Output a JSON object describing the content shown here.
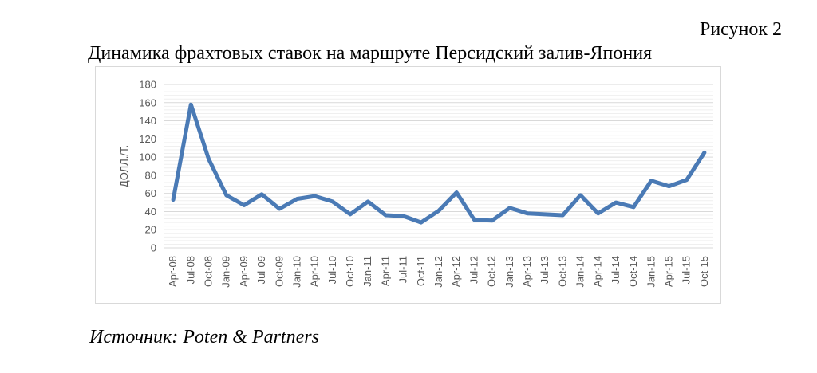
{
  "figure": {
    "label": "Рисунок 2",
    "title": "Динамика фрахтовых ставок на маршруте Персидский залив-Япония",
    "source": "Источник: Poten & Partners"
  },
  "chart_data": {
    "type": "line",
    "xlabel": "",
    "ylabel": "ДОЛЛ./Т.",
    "ylim": [
      0,
      180
    ],
    "yticks": [
      0,
      20,
      40,
      60,
      80,
      100,
      120,
      140,
      160,
      180
    ],
    "grid": true,
    "line_color": "#4a7ab5",
    "categories": [
      "Apr-08",
      "Jul-08",
      "Oct-08",
      "Jan-09",
      "Apr-09",
      "Jul-09",
      "Oct-09",
      "Jan-10",
      "Apr-10",
      "Jul-10",
      "Oct-10",
      "Jan-11",
      "Apr-11",
      "Jul-11",
      "Oct-11",
      "Jan-12",
      "Apr-12",
      "Jul-12",
      "Oct-12",
      "Jan-13",
      "Apr-13",
      "Jul-13",
      "Oct-13",
      "Jan-14",
      "Apr-14",
      "Jul-14",
      "Oct-14",
      "Jan-15",
      "Apr-15",
      "Jul-15",
      "Oct-15"
    ],
    "series": [
      {
        "values": [
          53,
          158,
          98,
          58,
          47,
          59,
          43,
          54,
          57,
          51,
          37,
          51,
          36,
          35,
          28,
          41,
          61,
          31,
          30,
          44,
          38,
          37,
          36,
          58,
          38,
          50,
          45,
          74,
          68,
          75,
          105
        ]
      }
    ]
  }
}
